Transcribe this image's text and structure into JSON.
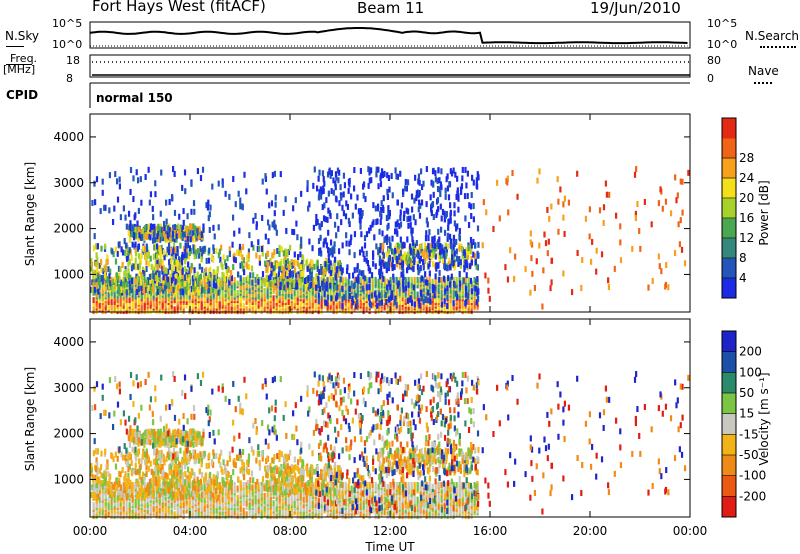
{
  "header": {
    "title": "Fort Hays West (fitACF)",
    "beam": "Beam 11",
    "date": "19/Jun/2010"
  },
  "top_panels": {
    "nsky_label": "N.Sky",
    "nsearch_label": "N.Search",
    "nsky_ticks": [
      "10^5",
      "10^0"
    ],
    "nsearch_ticks": [
      "10^5",
      "10^0"
    ],
    "freq_label": "Freq.",
    "freq_unit": "[MHz]",
    "freq_ticks": [
      "18",
      "8"
    ],
    "nave_label": "Nave",
    "nave_ticks": [
      "80",
      "0"
    ],
    "cpid_label": "CPID",
    "cpid_value": "normal 150"
  },
  "chart_data": [
    {
      "type": "heatmap",
      "title": "",
      "ylabel": "Slant Range [km]",
      "ylim": [
        180,
        4500
      ],
      "yticks": [
        "1000",
        "2000",
        "3000",
        "4000"
      ],
      "xlabel": "",
      "xlim": [
        "00:00",
        "24:00"
      ],
      "colorbar": {
        "label": "Power [dB]",
        "ticks": [
          "4",
          "8",
          "12",
          "16",
          "20",
          "24",
          "28"
        ],
        "colors": [
          "#1b2be6",
          "#2355bb",
          "#36877e",
          "#4aa850",
          "#a8d22a",
          "#f4e019",
          "#f7a01b",
          "#f06418",
          "#e42a14"
        ]
      }
    },
    {
      "type": "heatmap",
      "title": "",
      "ylabel": "Slant Range [km]",
      "ylim": [
        180,
        4500
      ],
      "yticks": [
        "1000",
        "2000",
        "3000",
        "4000"
      ],
      "xlabel": "Time UT",
      "xticks": [
        "00:00",
        "04:00",
        "08:00",
        "12:00",
        "16:00",
        "20:00",
        "00:00"
      ],
      "colorbar": {
        "label": "Velocity [m s⁻¹]",
        "ticks": [
          "200",
          "100",
          "50",
          "15",
          "-15",
          "-50",
          "-100",
          "-200"
        ],
        "colors": [
          "#1f24c8",
          "#1c50a8",
          "#2a8a6a",
          "#7ac543",
          "#c8c8c0",
          "#f2b318",
          "#f08a16",
          "#ea5a14",
          "#e01c14"
        ]
      }
    }
  ]
}
